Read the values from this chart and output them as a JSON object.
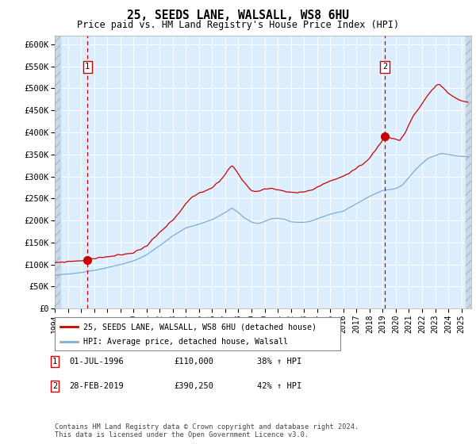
{
  "title1": "25, SEEDS LANE, WALSALL, WS8 6HU",
  "title2": "Price paid vs. HM Land Registry's House Price Index (HPI)",
  "ylabel_ticks": [
    "£0",
    "£50K",
    "£100K",
    "£150K",
    "£200K",
    "£250K",
    "£300K",
    "£350K",
    "£400K",
    "£450K",
    "£500K",
    "£550K",
    "£600K"
  ],
  "ytick_values": [
    0,
    50000,
    100000,
    150000,
    200000,
    250000,
    300000,
    350000,
    400000,
    450000,
    500000,
    550000,
    600000
  ],
  "ylim": [
    0,
    620000
  ],
  "purchase1_price": 110000,
  "purchase1_x": 1996.5,
  "purchase2_price": 390250,
  "purchase2_x": 2019.167,
  "xlim_start": 1994.0,
  "xlim_end": 2025.75,
  "xtick_years": [
    1994,
    1995,
    1996,
    1997,
    1998,
    1999,
    2000,
    2001,
    2002,
    2003,
    2004,
    2005,
    2006,
    2007,
    2008,
    2009,
    2010,
    2011,
    2012,
    2013,
    2014,
    2015,
    2016,
    2017,
    2018,
    2019,
    2020,
    2021,
    2022,
    2023,
    2024,
    2025
  ],
  "line1_color": "#cc0000",
  "line2_color": "#7aadda",
  "marker_color": "#cc0000",
  "dashed_line_color": "#cc0000",
  "bg_color": "#ddeeff",
  "hatch_bg_color": "#c8daea",
  "grid_color": "#ffffff",
  "legend1_label": "25, SEEDS LANE, WALSALL, WS8 6HU (detached house)",
  "legend2_label": "HPI: Average price, detached house, Walsall",
  "annot1": "01-JUL-1996",
  "annot1_price": "£110,000",
  "annot1_hpi": "38% ↑ HPI",
  "annot2": "28-FEB-2019",
  "annot2_price": "£390,250",
  "annot2_hpi": "42% ↑ HPI",
  "footer": "Contains HM Land Registry data © Crown copyright and database right 2024.\nThis data is licensed under the Open Government Licence v3.0."
}
